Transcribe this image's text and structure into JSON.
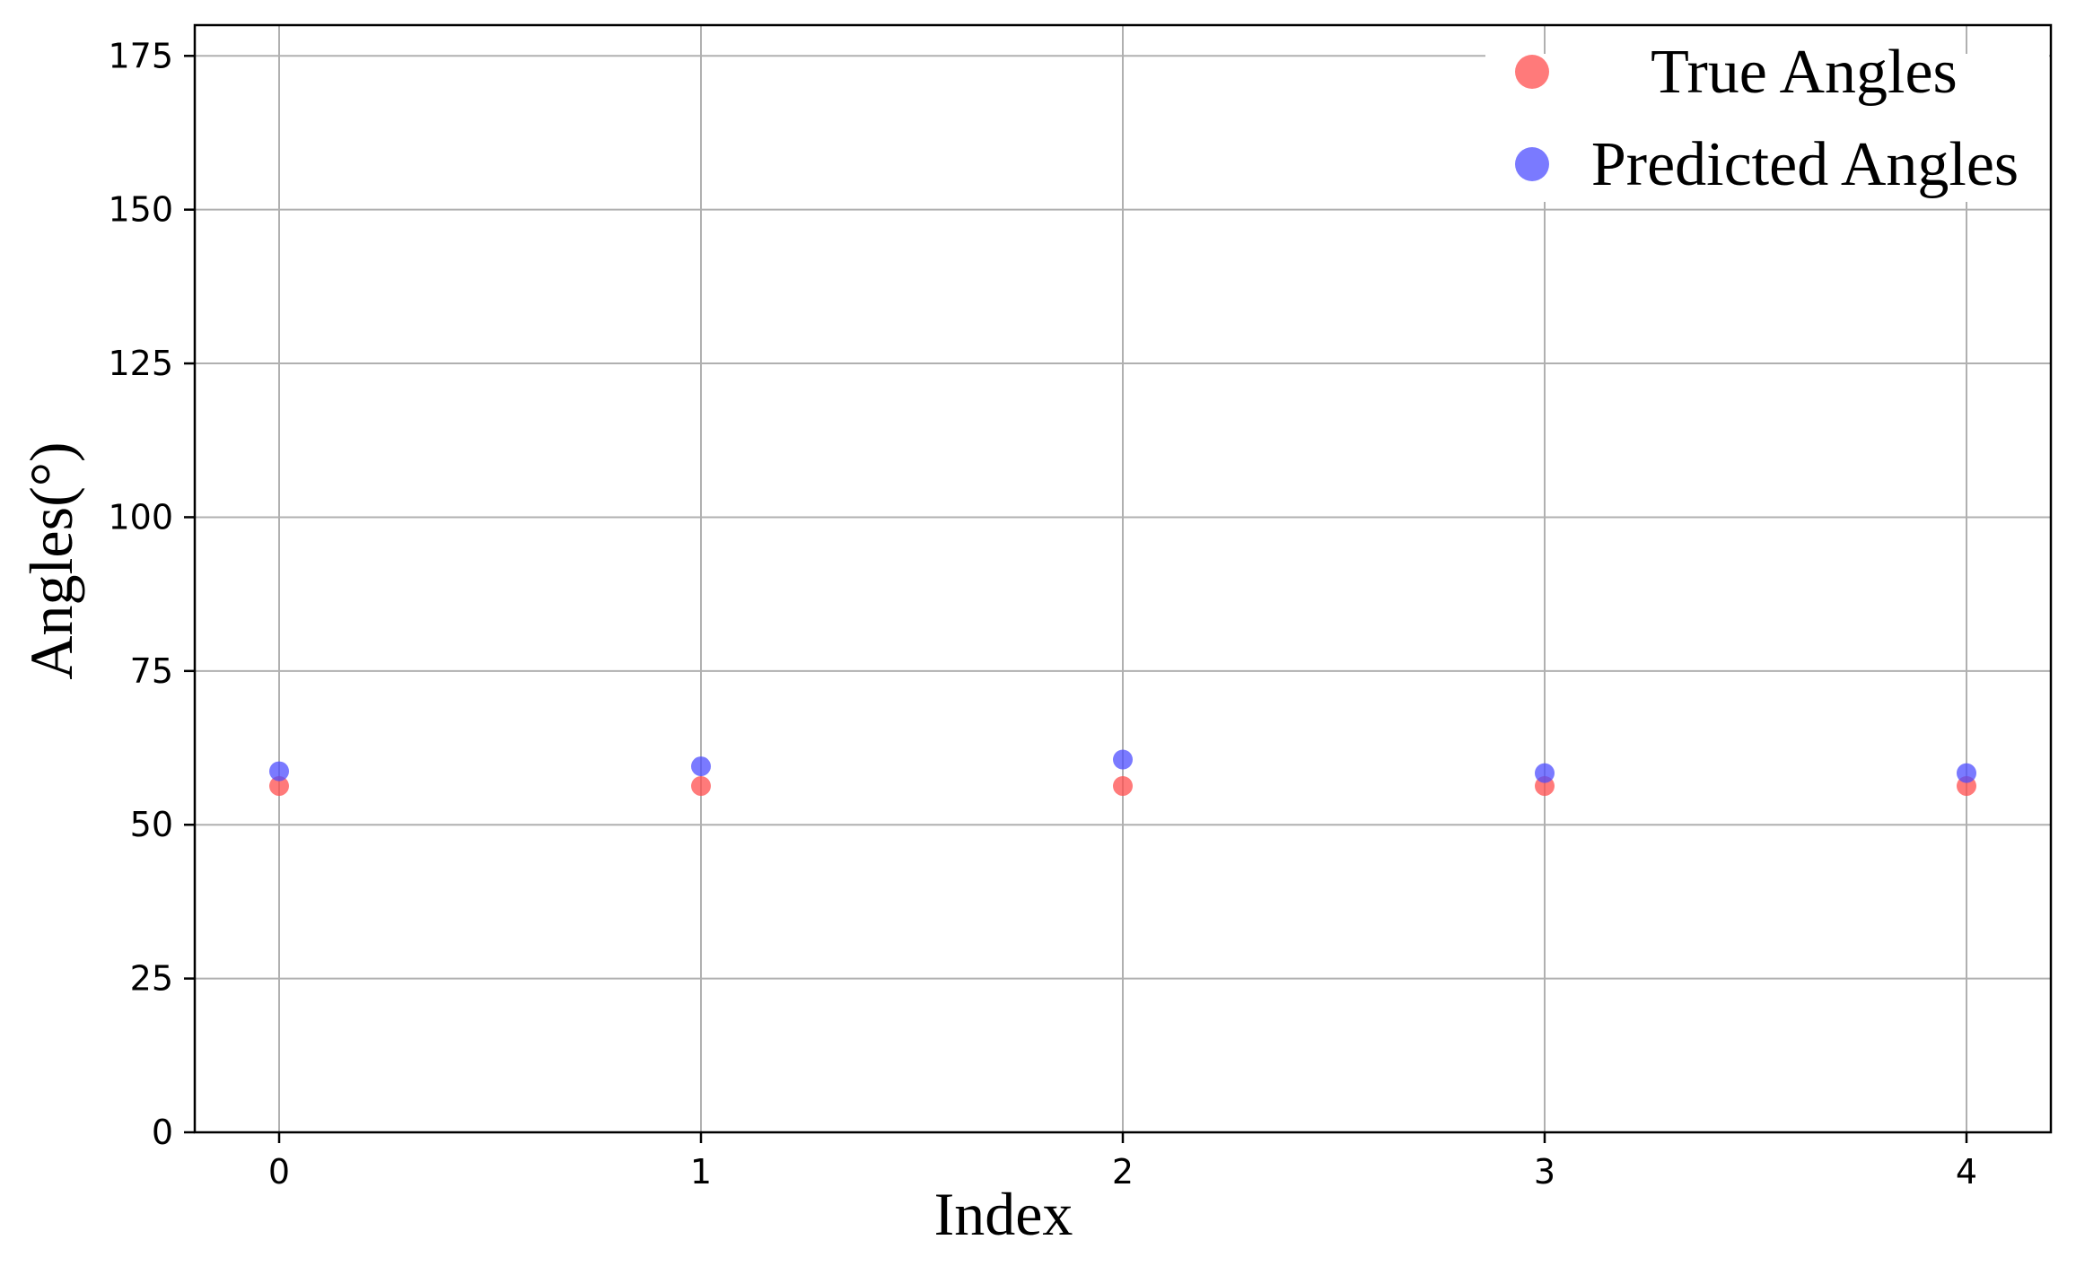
{
  "chart_data": {
    "type": "scatter",
    "title": "",
    "xlabel": "Index",
    "ylabel": "Angles(°)",
    "xlim": [
      -0.2,
      4.2
    ],
    "ylim": [
      0,
      180
    ],
    "xticks": [
      0,
      1,
      2,
      3,
      4
    ],
    "yticks": [
      0,
      25,
      50,
      75,
      100,
      125,
      150,
      175
    ],
    "grid": true,
    "legend_position": "top-right",
    "series": [
      {
        "name": "True Angles",
        "color": "#ff4d4d",
        "x": [
          0,
          1,
          2,
          3,
          4
        ],
        "y": [
          56.3,
          56.3,
          56.3,
          56.3,
          56.3
        ]
      },
      {
        "name": "Predicted Angles",
        "color": "#4d4dff",
        "x": [
          0,
          1,
          2,
          3,
          4
        ],
        "y": [
          58.7,
          59.5,
          60.6,
          58.4,
          58.4
        ]
      }
    ]
  }
}
